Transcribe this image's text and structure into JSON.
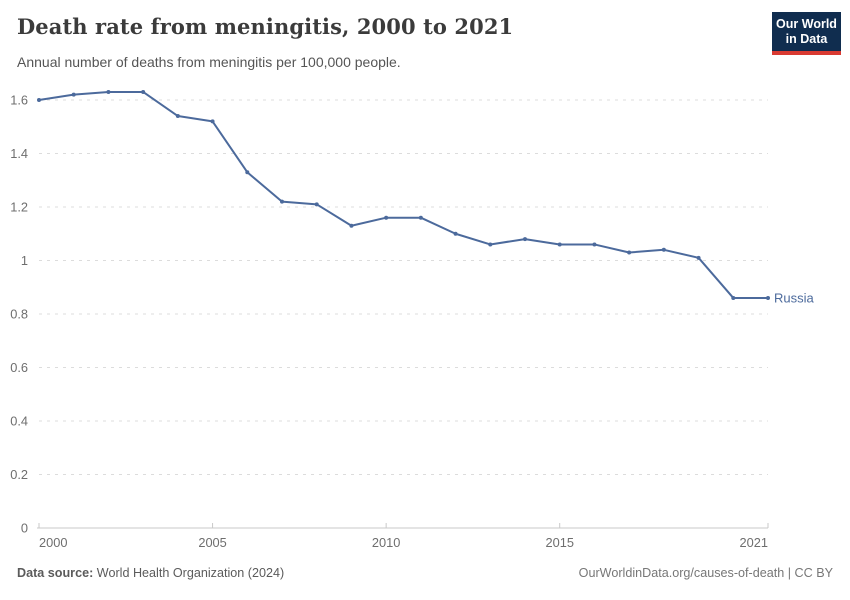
{
  "header": {
    "title": "Death rate from meningitis, 2000 to 2021",
    "subtitle": "Annual number of deaths from meningitis per 100,000 people.",
    "logo": {
      "line1": "Our World",
      "line2": "in Data",
      "bg_color": "#102D4F",
      "accent_color": "#D93A32"
    }
  },
  "chart_data": {
    "type": "line",
    "title": "Death rate from meningitis, 2000 to 2021",
    "subtitle": "Annual number of deaths from meningitis per 100,000 people.",
    "xlabel": "",
    "ylabel": "",
    "xlim": [
      2000,
      2021
    ],
    "ylim": [
      0,
      1.6
    ],
    "x_ticks": [
      2000,
      2005,
      2010,
      2015,
      2021
    ],
    "y_ticks": [
      0,
      0.2,
      0.4,
      0.6,
      0.8,
      1,
      1.2,
      1.4,
      1.6
    ],
    "grid": "horizontal-dashed",
    "legend_position": "end-of-line",
    "grid_color": "#dcdcdc",
    "axis_color": "#c9c9c9",
    "tick_label_color": "#6e6e6e",
    "series": [
      {
        "name": "Russia",
        "color": "#4C6A9C",
        "x": [
          2000,
          2001,
          2002,
          2003,
          2004,
          2005,
          2006,
          2007,
          2008,
          2009,
          2010,
          2011,
          2012,
          2013,
          2014,
          2015,
          2016,
          2017,
          2018,
          2019,
          2020,
          2021
        ],
        "values": [
          1.6,
          1.62,
          1.63,
          1.63,
          1.54,
          1.52,
          1.33,
          1.22,
          1.21,
          1.13,
          1.16,
          1.16,
          1.1,
          1.06,
          1.08,
          1.06,
          1.06,
          1.03,
          1.04,
          1.01,
          0.86,
          0.86
        ]
      }
    ]
  },
  "footer": {
    "source_label": "Data source:",
    "source_value": " World Health Organization (2024)",
    "credit": "OurWorldinData.org/causes-of-death | CC BY"
  }
}
